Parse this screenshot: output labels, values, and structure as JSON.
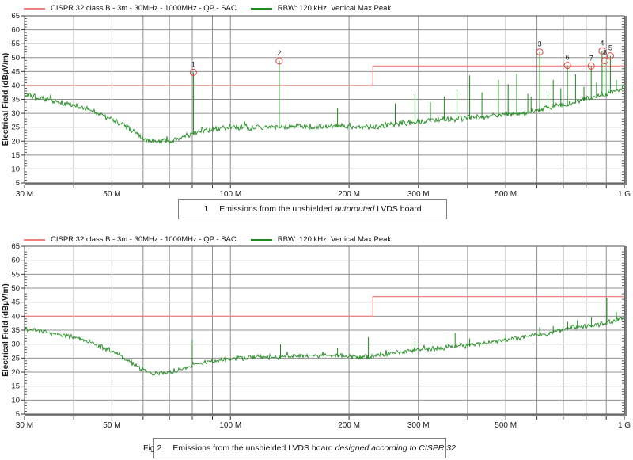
{
  "colors": {
    "limit": "#f08080",
    "trace": "#1f8b1f",
    "marker": "#e04545",
    "grid": "#909090",
    "frame": "#4d4d4d",
    "shadow": "#828282",
    "tick": "#333333"
  },
  "captions": [
    {
      "num": "1",
      "pre": "Emissions from the unshielded ",
      "italic": "autorouted",
      "post": " LVDS board"
    },
    {
      "num": "Fig.2",
      "pre": "Emissions from the unshielded LVDS board ",
      "italic": "designed according to CISPR 32",
      "post": ""
    }
  ],
  "chart_data": [
    {
      "type": "line",
      "title": "",
      "legend": [
        {
          "label": "CISPR 32 class B - 3m - 30MHz - 1000MHz - QP - SAC",
          "color": "#f08080"
        },
        {
          "label": "RBW: 120 kHz, Vertical Max Peak",
          "color": "#1f8b1f"
        }
      ],
      "ylabel": "Electrical Field (dBµV/m)",
      "xscale": "log",
      "xlim": [
        30,
        1000
      ],
      "ylim": [
        5,
        65
      ],
      "xticks": {
        "values": [
          30,
          50,
          100,
          200,
          300,
          500,
          1000
        ],
        "labels": [
          "30 M",
          "50 M",
          "100 M",
          "200 M",
          "300 M",
          "500 M",
          "1 G"
        ]
      },
      "yticks": [
        65,
        60,
        55,
        50,
        45,
        40,
        35,
        30,
        25,
        20,
        15,
        10,
        5
      ],
      "grid_x": [
        40,
        50,
        60,
        70,
        80,
        90,
        100,
        200,
        300,
        400,
        500,
        600,
        700,
        800,
        900
      ],
      "grid_y": [
        10,
        15,
        20,
        25,
        30,
        35,
        40,
        45,
        50,
        55,
        60
      ],
      "limit_line": {
        "points": [
          [
            30,
            40
          ],
          [
            230,
            40
          ],
          [
            230,
            47
          ],
          [
            1000,
            47
          ]
        ]
      },
      "trace": {
        "noise_db": 1.3,
        "baseline": [
          [
            30,
            36.5
          ],
          [
            34,
            35
          ],
          [
            38,
            33.5
          ],
          [
            42,
            32
          ],
          [
            46,
            30
          ],
          [
            50,
            28
          ],
          [
            54,
            25.5
          ],
          [
            58,
            22.5
          ],
          [
            62,
            20.3
          ],
          [
            66,
            19.8
          ],
          [
            70,
            20.3
          ],
          [
            75,
            21.5
          ],
          [
            80,
            23
          ],
          [
            90,
            24.5
          ],
          [
            100,
            25
          ],
          [
            115,
            24.6
          ],
          [
            130,
            25
          ],
          [
            150,
            25.4
          ],
          [
            170,
            25
          ],
          [
            190,
            25.5
          ],
          [
            210,
            24.6
          ],
          [
            230,
            25
          ],
          [
            260,
            26.3
          ],
          [
            300,
            27
          ],
          [
            350,
            27.8
          ],
          [
            400,
            28.4
          ],
          [
            450,
            28.8
          ],
          [
            500,
            29.5
          ],
          [
            550,
            30
          ],
          [
            600,
            31
          ],
          [
            650,
            32
          ],
          [
            700,
            33
          ],
          [
            750,
            34
          ],
          [
            800,
            35
          ],
          [
            850,
            36
          ],
          [
            900,
            37
          ],
          [
            950,
            38.3
          ],
          [
            1000,
            40
          ]
        ]
      },
      "spikes": [
        [
          187,
          32
        ],
        [
          262,
          33.5
        ],
        [
          294,
          37
        ],
        [
          322,
          34
        ],
        [
          349,
          36
        ],
        [
          376,
          38.5
        ],
        [
          405,
          43.6
        ],
        [
          435,
          37.5
        ],
        [
          479,
          42
        ],
        [
          507,
          40.5
        ],
        [
          533,
          44.2
        ],
        [
          569,
          37
        ],
        [
          580,
          36
        ],
        [
          640,
          38
        ],
        [
          660,
          42
        ],
        [
          690,
          39
        ],
        [
          752,
          44
        ],
        [
          790,
          39.5
        ],
        [
          850,
          41
        ],
        [
          955,
          42
        ]
      ],
      "markers": [
        {
          "n": "1",
          "f": 80.5,
          "v": 44.7
        },
        {
          "n": "2",
          "f": 133,
          "v": 48.8
        },
        {
          "n": "3",
          "f": 610,
          "v": 52.0
        },
        {
          "n": "4",
          "f": 878,
          "v": 52.4
        },
        {
          "n": "5",
          "f": 922,
          "v": 50.6
        },
        {
          "n": "6",
          "f": 717,
          "v": 47.2
        },
        {
          "n": "7",
          "f": 824,
          "v": 47.0
        },
        {
          "n": "8",
          "f": 893,
          "v": 48.9
        }
      ]
    },
    {
      "type": "line",
      "title": "",
      "legend": [
        {
          "label": "CISPR 32 class B - 3m - 30MHz - 1000MHz - QP - SAC",
          "color": "#f08080"
        },
        {
          "label": "RBW: 120 kHz, Vertical Max Peak",
          "color": "#1f8b1f"
        }
      ],
      "ylabel": "Electrical Field (dBµV/m)",
      "xscale": "log",
      "xlim": [
        30,
        1000
      ],
      "ylim": [
        5,
        65
      ],
      "xticks": {
        "values": [
          30,
          50,
          100,
          200,
          300,
          500,
          1000
        ],
        "labels": [
          "30 M",
          "50 M",
          "100 M",
          "200 M",
          "300 M",
          "500 M",
          "1 G"
        ]
      },
      "yticks": [
        65,
        60,
        55,
        50,
        45,
        40,
        35,
        30,
        25,
        20,
        15,
        10,
        5
      ],
      "grid_x": [
        40,
        50,
        60,
        70,
        80,
        90,
        100,
        200,
        300,
        400,
        500,
        600,
        700,
        800,
        900
      ],
      "grid_y": [
        10,
        15,
        20,
        25,
        30,
        35,
        40,
        45,
        50,
        55,
        60
      ],
      "limit_line": {
        "points": [
          [
            30,
            40
          ],
          [
            230,
            40
          ],
          [
            230,
            47
          ],
          [
            1000,
            47
          ]
        ]
      },
      "trace": {
        "noise_db": 1.1,
        "baseline": [
          [
            30,
            35.5
          ],
          [
            34,
            34.3
          ],
          [
            38,
            33
          ],
          [
            42,
            31.5
          ],
          [
            46,
            29.5
          ],
          [
            50,
            27.5
          ],
          [
            54,
            25
          ],
          [
            58,
            22
          ],
          [
            62,
            19.8
          ],
          [
            66,
            19.3
          ],
          [
            70,
            20
          ],
          [
            75,
            21
          ],
          [
            80,
            22.3
          ],
          [
            90,
            23.8
          ],
          [
            100,
            24.8
          ],
          [
            115,
            25.3
          ],
          [
            130,
            25.4
          ],
          [
            150,
            25.8
          ],
          [
            170,
            26
          ],
          [
            190,
            26
          ],
          [
            210,
            25.5
          ],
          [
            230,
            25.6
          ],
          [
            260,
            27
          ],
          [
            300,
            28
          ],
          [
            350,
            28.8
          ],
          [
            400,
            29.5
          ],
          [
            450,
            30.5
          ],
          [
            500,
            31.3
          ],
          [
            550,
            32.3
          ],
          [
            600,
            33.3
          ],
          [
            650,
            34.3
          ],
          [
            700,
            35.3
          ],
          [
            750,
            36
          ],
          [
            800,
            36.4
          ],
          [
            850,
            37
          ],
          [
            900,
            37.5
          ],
          [
            950,
            38.3
          ],
          [
            1000,
            40
          ]
        ]
      },
      "spikes": [
        [
          80,
          31.5
        ],
        [
          134,
          30
        ],
        [
          187,
          28.5
        ],
        [
          224,
          32.5
        ],
        [
          294,
          31
        ],
        [
          372,
          34
        ],
        [
          405,
          32
        ],
        [
          500,
          33.5
        ],
        [
          610,
          36
        ],
        [
          660,
          36.5
        ],
        [
          718,
          38
        ],
        [
          760,
          38.5
        ],
        [
          825,
          39.5
        ],
        [
          903,
          46.5
        ],
        [
          955,
          41.5
        ]
      ],
      "markers": []
    }
  ]
}
